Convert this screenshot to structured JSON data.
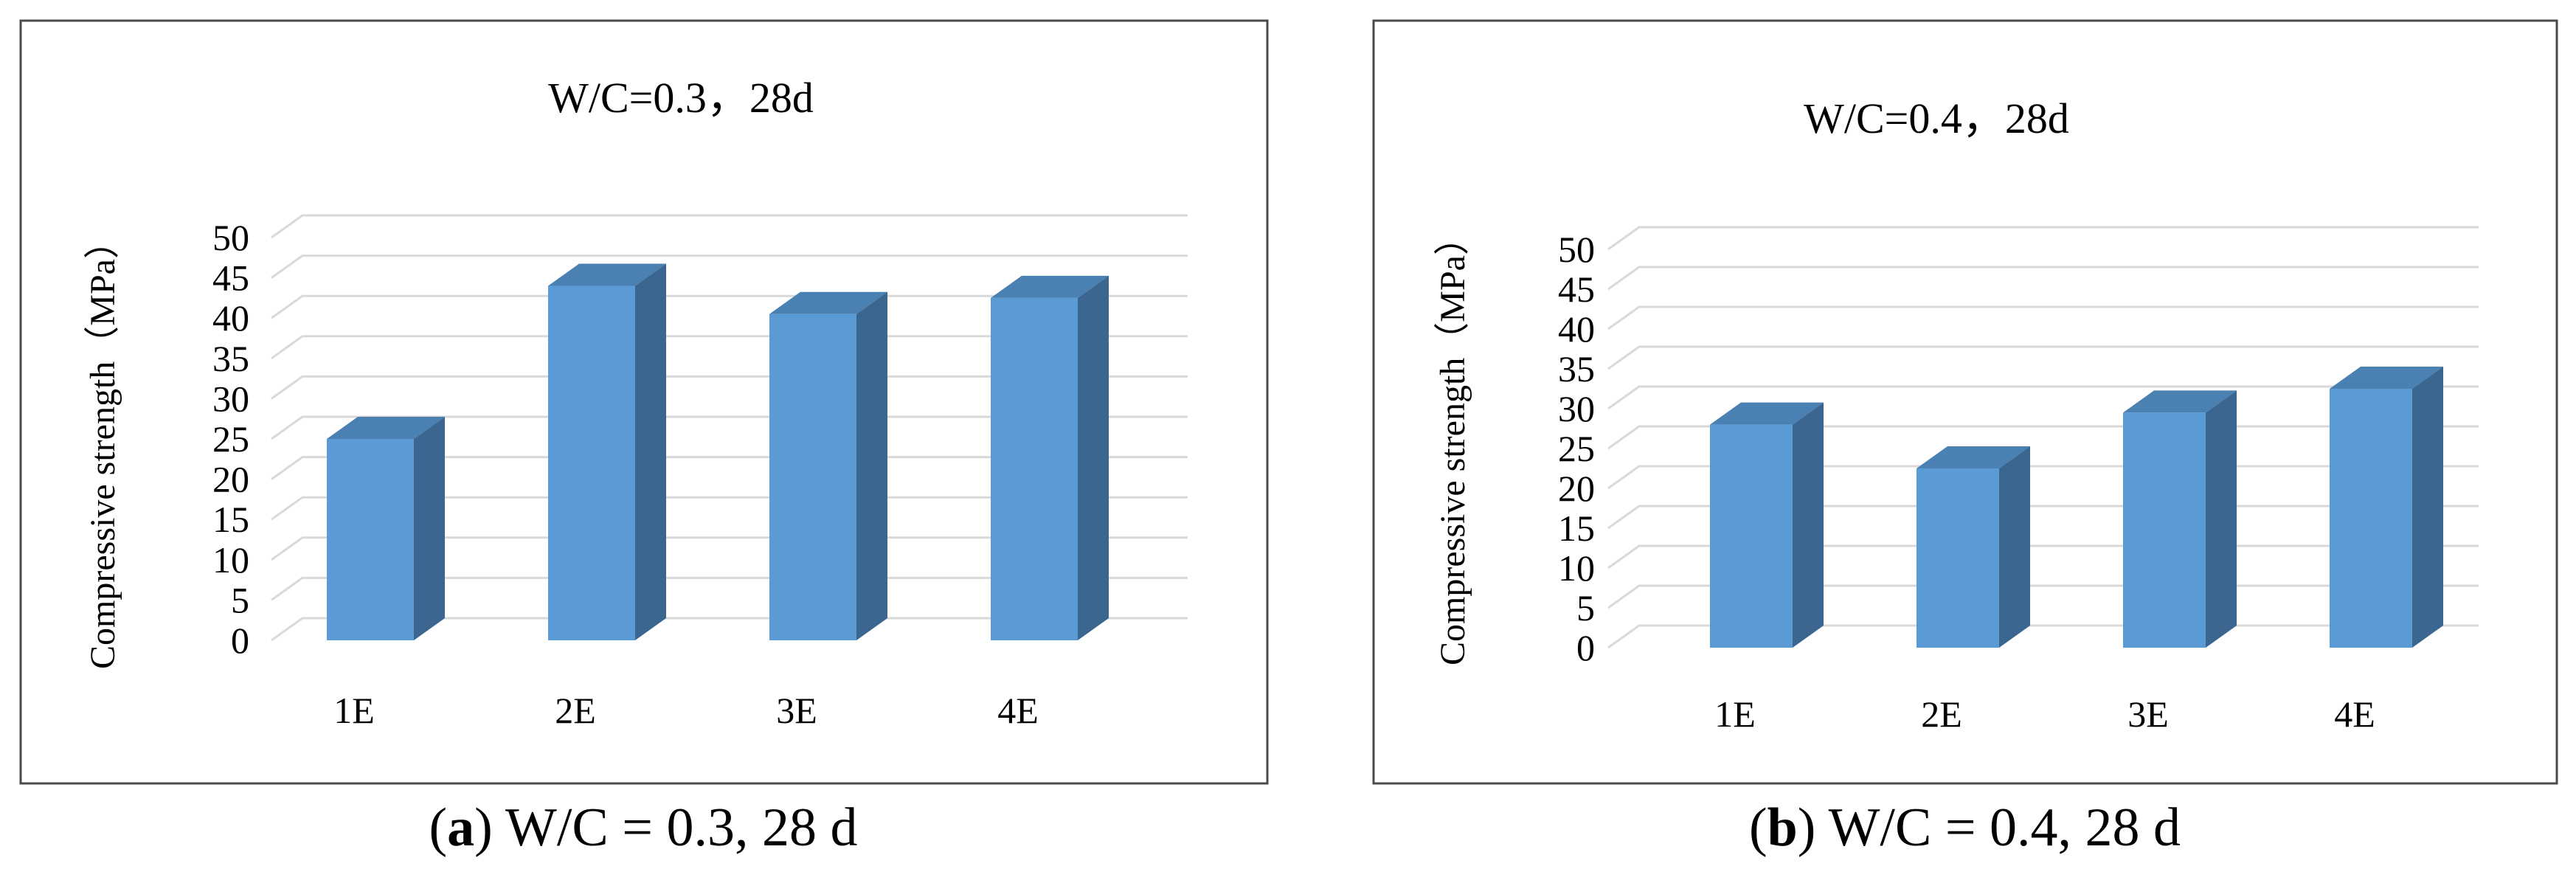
{
  "colors": {
    "bar_front": "#5B9BD5",
    "bar_side": "#3B6690",
    "bar_top": "#4A80B2",
    "grid": "#D9D9D9",
    "frame": "#4A4A4A",
    "text": "#000000"
  },
  "chart_data": [
    {
      "type": "bar",
      "title": "W/C=0.3，28d",
      "ylabel": "Compressive strength（MPa）",
      "xlabel": "",
      "categories": [
        "1E",
        "2E",
        "3E",
        "4E"
      ],
      "values": [
        25,
        44,
        40.5,
        42.5
      ],
      "ylim": [
        0,
        50
      ],
      "yticks": [
        "0",
        "5",
        "10",
        "15",
        "20",
        "25",
        "30",
        "35",
        "40",
        "45",
        "50"
      ],
      "grid": true,
      "caption_label": "a",
      "caption_text": "W/C = 0.3, 28 d"
    },
    {
      "type": "bar",
      "title": "W/C=0.4，28d",
      "ylabel": "Compressive strength（MPa）",
      "xlabel": "",
      "categories": [
        "1E",
        "2E",
        "3E",
        "4E"
      ],
      "values": [
        28,
        22.5,
        29.5,
        32.5
      ],
      "ylim": [
        0,
        50
      ],
      "yticks": [
        "0",
        "5",
        "10",
        "15",
        "20",
        "25",
        "30",
        "35",
        "40",
        "45",
        "50"
      ],
      "grid": true,
      "caption_label": "b",
      "caption_text": "W/C = 0.4, 28 d"
    }
  ]
}
